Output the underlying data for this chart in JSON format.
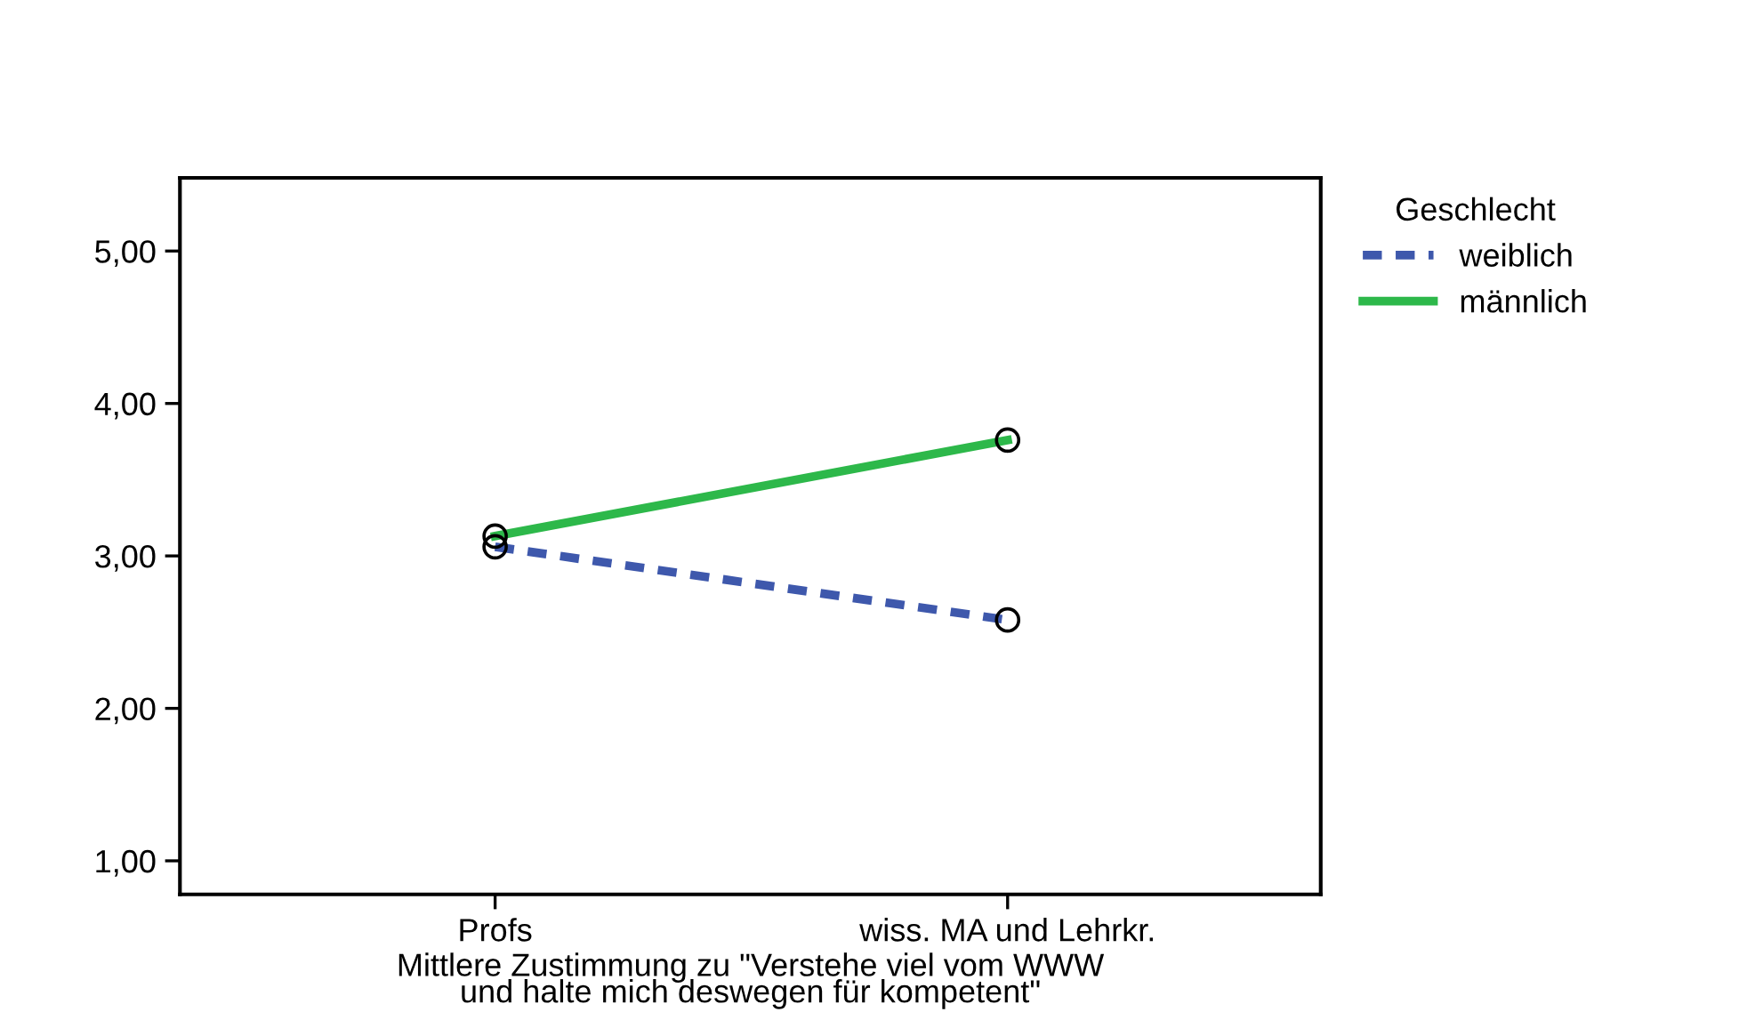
{
  "chart_data": {
    "type": "line",
    "xlabel": "Mittlere Zustimmung zu \"Verstehe viel vom WWW\nund halte mich deswegen für kompetent\"",
    "legend_title": "Geschlecht",
    "categories": [
      "Profs",
      "wiss. MA und Lehrkr."
    ],
    "series": [
      {
        "name": "weiblich",
        "color": "#3e58ac",
        "values": [
          3.06,
          2.58
        ],
        "line_style": "dashed"
      },
      {
        "name": "männlich",
        "color": "#2db84a",
        "values": [
          3.13,
          3.76
        ],
        "line_style": "solid"
      }
    ],
    "ylim": [
      0.78,
      5.48
    ],
    "yticks": [
      {
        "value": 1,
        "label": "1,00"
      },
      {
        "value": 2,
        "label": "2,00"
      },
      {
        "value": 3,
        "label": "3,00"
      },
      {
        "value": 4,
        "label": "4,00"
      },
      {
        "value": 5,
        "label": "5,00"
      }
    ],
    "marker": "circle",
    "grid": false,
    "legend": "top right"
  }
}
